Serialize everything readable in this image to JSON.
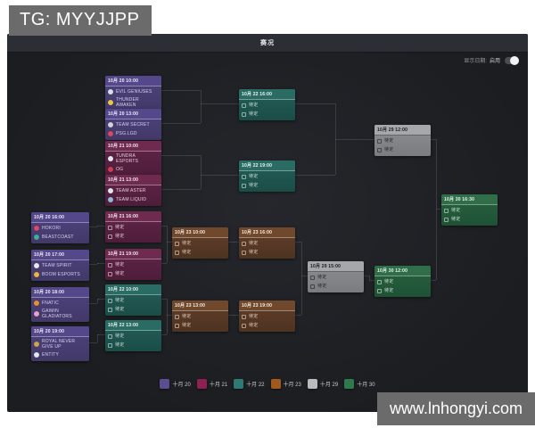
{
  "page": {
    "tag_label": "TG: MYYJJPP",
    "watermark": "www.lnhongyi.com"
  },
  "window": {
    "title": "赛况",
    "date_toggle": {
      "label": "显示日期:",
      "value": "启用",
      "state": "on"
    }
  },
  "legend": {
    "items": [
      {
        "label": "十月 20",
        "color": "#5c4d90"
      },
      {
        "label": "十月 21",
        "color": "#8e2154"
      },
      {
        "label": "十月 22",
        "color": "#2e7a73"
      },
      {
        "label": "十月 23",
        "color": "#a05a1e"
      },
      {
        "label": "十月 29",
        "color": "#b9babc"
      },
      {
        "label": "十月 30",
        "color": "#2e7a4a"
      }
    ]
  },
  "bracket": {
    "tbd_label": "待定",
    "day_styles": {
      "oct20": {
        "header_bg": "#54488a",
        "body_top": "#4e4380",
        "body_bottom": "#423968",
        "text": "#d7d0ef",
        "header_text": "#f1eefb",
        "sep": "rgba(255,255,255,0.35)"
      },
      "oct21": {
        "header_bg": "#6f2a50",
        "body_top": "#622549",
        "body_bottom": "#4e1d3a",
        "text": "#e8cdda",
        "header_text": "#f7edf3",
        "sep": "rgba(255,255,255,0.35)"
      },
      "oct22": {
        "header_bg": "#2a6c64",
        "body_top": "#255e58",
        "body_bottom": "#1b4d47",
        "text": "#c9e0dc",
        "header_text": "#eef7f5",
        "sep": "rgba(255,255,255,0.35)"
      },
      "oct23": {
        "header_bg": "#70482c",
        "body_top": "#613f29",
        "body_bottom": "#4e3321",
        "text": "#e6d0bd",
        "header_text": "#f8f0e8",
        "sep": "rgba(255,255,255,0.35)"
      },
      "oct29": {
        "header_bg": "#a6a7ab",
        "body_top": "#8d8e92",
        "body_bottom": "#7b7c80",
        "text": "#232327",
        "header_text": "#18181b",
        "sep": "rgba(0,0,0,0.4)"
      },
      "oct30": {
        "header_bg": "#2f6e48",
        "body_top": "#296140",
        "body_bottom": "#1f5235",
        "text": "#cde2d4",
        "header_text": "#edf6f0",
        "sep": "rgba(255,255,255,0.35)"
      }
    },
    "rounds": [
      {
        "name": "lb-round-1",
        "matches": [
          {
            "date": "10月 20 16:00",
            "day": "oct20",
            "teams": [
              {
                "name": "HOKORI",
                "icon_color": "#d94a6a"
              },
              {
                "name": "BEASTCOAST",
                "icon_color": "#3fae9f"
              }
            ]
          },
          {
            "date": "10月 20 17:00",
            "day": "oct20",
            "teams": [
              {
                "name": "TEAM SPIRIT",
                "icon_color": "#e8e8ea"
              },
              {
                "name": "BOOM ESPORTS",
                "icon_color": "#e8b63e"
              }
            ]
          },
          {
            "date": "10月 20 18:00",
            "day": "oct20",
            "teams": [
              {
                "name": "FNATIC",
                "icon_color": "#e8902e"
              },
              {
                "name": "GAIMIN GLADIATORS",
                "icon_color": "#e7a0c8"
              }
            ]
          },
          {
            "date": "10月 20 19:00",
            "day": "oct20",
            "teams": [
              {
                "name": "ROYAL NEVER GIVE UP",
                "icon_color": "#c9a64a"
              },
              {
                "name": "ENTITY",
                "icon_color": "#e4e6ea"
              }
            ]
          }
        ]
      },
      {
        "name": "ub-quarterfinals",
        "matches": [
          {
            "date": "10月 20 10:00",
            "day": "oct20",
            "teams": [
              {
                "name": "EVIL GENIUSES",
                "icon_color": "#d8dce6"
              },
              {
                "name": "THUNDER AWAKEN",
                "icon_color": "#e8c54a"
              }
            ]
          },
          {
            "date": "10月 20 13:00",
            "day": "oct20",
            "teams": [
              {
                "name": "TEAM SECRET",
                "icon_color": "#cfd2d8"
              },
              {
                "name": "PSG.LGD",
                "icon_color": "#d84a5a"
              }
            ]
          },
          {
            "date": "10月 21 10:00",
            "day": "oct21",
            "teams": [
              {
                "name": "TUNDRA ESPORTS",
                "icon_color": "#e6e8ee"
              },
              {
                "name": "OG",
                "icon_color": "#d4394f"
              }
            ]
          },
          {
            "date": "10月 21 13:00",
            "day": "oct21",
            "teams": [
              {
                "name": "TEAM ASTER",
                "icon_color": "#e0e4ec"
              },
              {
                "name": "TEAM LIQUID",
                "icon_color": "#8fb9dd"
              }
            ]
          }
        ]
      },
      {
        "name": "lb-round-2",
        "matches": [
          {
            "date": "10月 21 16:00",
            "day": "oct21",
            "teams": null
          },
          {
            "date": "10月 21 19:00",
            "day": "oct21",
            "teams": null
          },
          {
            "date": "10月 22 10:00",
            "day": "oct22",
            "teams": null
          },
          {
            "date": "10月 22 13:00",
            "day": "oct22",
            "teams": null
          }
        ]
      },
      {
        "name": "lb-round-3",
        "matches": [
          {
            "date": "10月 23 10:00",
            "day": "oct23",
            "teams": null
          },
          {
            "date": "10月 23 13:00",
            "day": "oct23",
            "teams": null
          }
        ]
      },
      {
        "name": "ub-semifinals",
        "matches": [
          {
            "date": "10月 22 16:00",
            "day": "oct22",
            "teams": null
          },
          {
            "date": "10月 22 19:00",
            "day": "oct22",
            "teams": null
          }
        ]
      },
      {
        "name": "lb-round-4",
        "matches": [
          {
            "date": "10月 23 16:00",
            "day": "oct23",
            "teams": null
          },
          {
            "date": "10月 23 19:00",
            "day": "oct23",
            "teams": null
          }
        ]
      },
      {
        "name": "lb-round-5",
        "matches": [
          {
            "date": "10月 29 15:00",
            "day": "oct29",
            "teams": null
          }
        ]
      },
      {
        "name": "ub-final",
        "matches": [
          {
            "date": "10月 29 12:00",
            "day": "oct29",
            "teams": null
          }
        ]
      },
      {
        "name": "lb-final",
        "matches": [
          {
            "date": "10月 30 12:00",
            "day": "oct30",
            "teams": null
          }
        ]
      },
      {
        "name": "grand-final",
        "matches": [
          {
            "date": "10月 30 16:30",
            "day": "oct30",
            "teams": null
          }
        ]
      }
    ]
  }
}
